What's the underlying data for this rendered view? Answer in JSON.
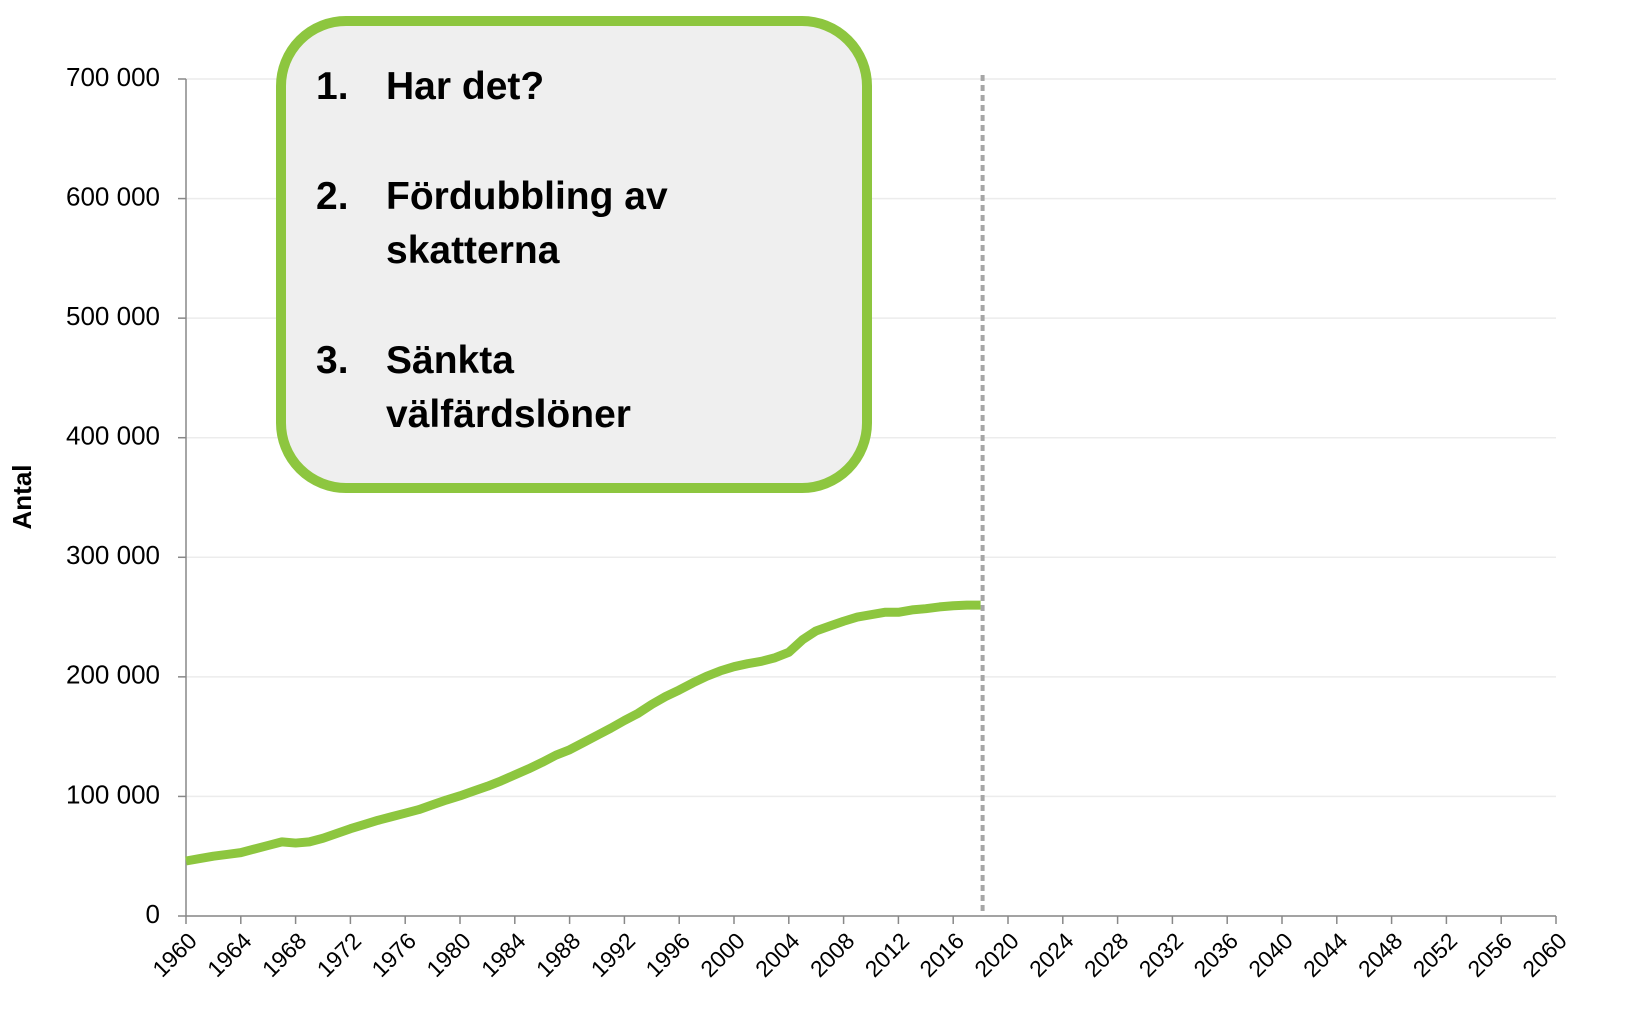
{
  "chart_data": {
    "type": "line",
    "ylabel": "Antal",
    "x": [
      1960,
      1961,
      1962,
      1963,
      1964,
      1965,
      1966,
      1967,
      1968,
      1969,
      1970,
      1971,
      1972,
      1973,
      1974,
      1975,
      1976,
      1977,
      1978,
      1979,
      1980,
      1981,
      1982,
      1983,
      1984,
      1985,
      1986,
      1987,
      1988,
      1989,
      1990,
      1991,
      1992,
      1993,
      1994,
      1995,
      1996,
      1997,
      1998,
      1999,
      2000,
      2001,
      2002,
      2003,
      2004,
      2005,
      2006,
      2007,
      2008,
      2009,
      2010,
      2011,
      2012,
      2013,
      2014,
      2015,
      2016,
      2017,
      2018
    ],
    "series": [
      {
        "name": "Antal",
        "color": "#8dc63f",
        "values": [
          46000,
          48000,
          50000,
          51500,
          53000,
          56000,
          59000,
          62000,
          61000,
          62000,
          65000,
          69000,
          73000,
          76500,
          80000,
          83000,
          86000,
          89000,
          93000,
          97000,
          100500,
          104500,
          108500,
          113000,
          118000,
          123000,
          128500,
          134500,
          139000,
          145000,
          151000,
          157000,
          163500,
          169500,
          177000,
          183500,
          189000,
          195000,
          200500,
          205000,
          208500,
          211000,
          213000,
          216000,
          220500,
          231000,
          238500,
          242500,
          246500,
          250000,
          252000,
          254000,
          254000,
          256000,
          257000,
          258500,
          259500,
          260000,
          260000
        ]
      }
    ],
    "reference_x": 2018,
    "xlim": [
      1960,
      2060
    ],
    "xticks": [
      1960,
      1964,
      1968,
      1972,
      1976,
      1980,
      1984,
      1988,
      1992,
      1996,
      2000,
      2004,
      2008,
      2012,
      2016,
      2020,
      2024,
      2028,
      2032,
      2036,
      2040,
      2044,
      2048,
      2052,
      2056,
      2060
    ],
    "ylim": [
      0,
      700000
    ],
    "yticks": [
      0,
      {
        "value": 100000,
        "label": "100 000"
      },
      {
        "value": 200000,
        "label": "200 000"
      },
      {
        "value": 300000,
        "label": "300 000"
      },
      {
        "value": 400000,
        "label": "400 000"
      },
      {
        "value": 500000,
        "label": "500 000"
      },
      {
        "value": 600000,
        "label": "600 000"
      },
      {
        "value": 700000,
        "label": "700 000"
      }
    ],
    "grid": true,
    "annotation": [
      {
        "number": "1.",
        "text": "Har det?"
      },
      {
        "number": "2.",
        "text": "Fördubbling av skatterna"
      },
      {
        "number": "3.",
        "text": "Sänkta välfärdslöner"
      }
    ]
  }
}
